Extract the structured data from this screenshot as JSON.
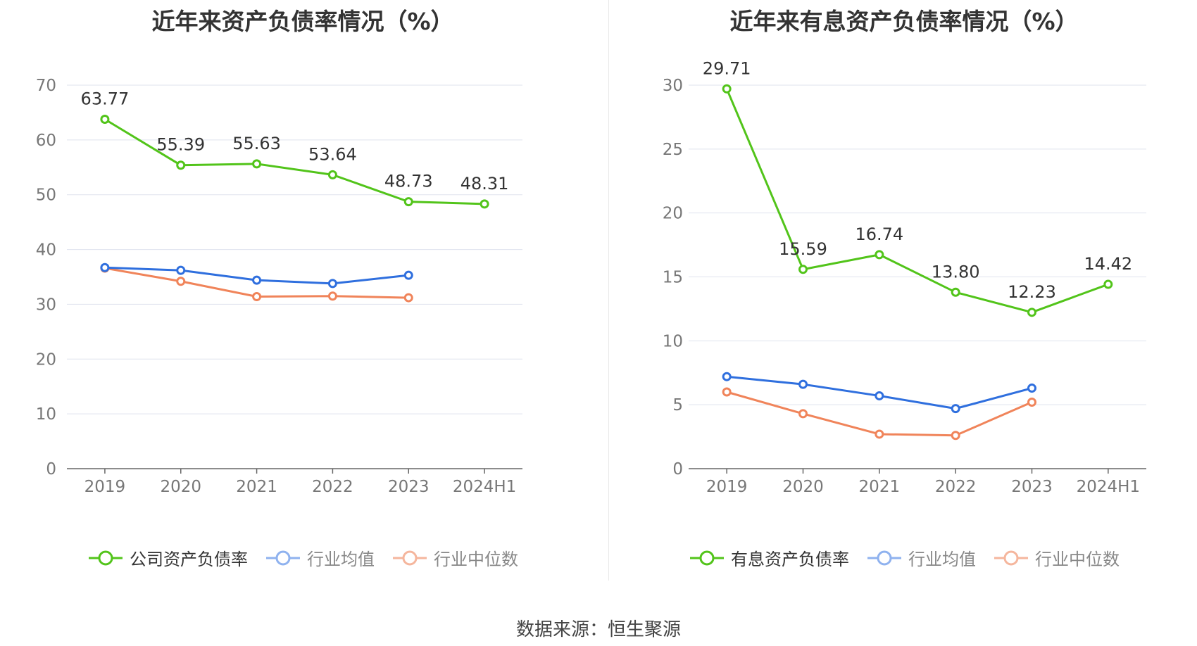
{
  "source_text": "数据来源：恒生聚源",
  "colors": {
    "company": "#52c41a",
    "industry_avg": "#2f6fde",
    "industry_median": "#f0845a",
    "grid": "#dfe3ee",
    "axis": "#666666"
  },
  "chart_data": [
    {
      "type": "line",
      "title": "近年来资产负债率情况（%）",
      "categories": [
        "2019",
        "2020",
        "2021",
        "2022",
        "2023",
        "2024H1"
      ],
      "ylim": [
        0,
        70
      ],
      "yticks": [
        0,
        10,
        20,
        30,
        40,
        50,
        60,
        70
      ],
      "grid": true,
      "legend_position": "bottom",
      "series": [
        {
          "name": "公司资产负债率",
          "color": "#52c41a",
          "labels": true,
          "values": [
            63.77,
            55.39,
            55.63,
            53.64,
            48.73,
            48.31
          ],
          "value_labels": [
            "63.77",
            "55.39",
            "55.63",
            "53.64",
            "48.73",
            "48.31"
          ]
        },
        {
          "name": "行业均值",
          "color": "#2f6fde",
          "labels": false,
          "values": [
            36.7,
            36.2,
            34.4,
            33.8,
            35.3,
            null
          ]
        },
        {
          "name": "行业中位数",
          "color": "#f0845a",
          "labels": false,
          "values": [
            36.6,
            34.2,
            31.4,
            31.5,
            31.2,
            null
          ]
        }
      ]
    },
    {
      "type": "line",
      "title": "近年来有息资产负债率情况（%）",
      "categories": [
        "2019",
        "2020",
        "2021",
        "2022",
        "2023",
        "2024H1"
      ],
      "ylim": [
        0,
        30
      ],
      "yticks": [
        0,
        5,
        10,
        15,
        20,
        25,
        30
      ],
      "grid": true,
      "legend_position": "bottom",
      "series": [
        {
          "name": "有息资产负债率",
          "color": "#52c41a",
          "labels": true,
          "values": [
            29.71,
            15.59,
            16.74,
            13.8,
            12.23,
            14.42
          ],
          "value_labels": [
            "29.71",
            "15.59",
            "16.74",
            "13.80",
            "12.23",
            "14.42"
          ]
        },
        {
          "name": "行业均值",
          "color": "#2f6fde",
          "labels": false,
          "values": [
            7.2,
            6.6,
            5.7,
            4.7,
            6.3,
            null
          ]
        },
        {
          "name": "行业中位数",
          "color": "#f0845a",
          "labels": false,
          "values": [
            6.0,
            4.3,
            2.7,
            2.6,
            5.2,
            null
          ]
        }
      ]
    }
  ]
}
